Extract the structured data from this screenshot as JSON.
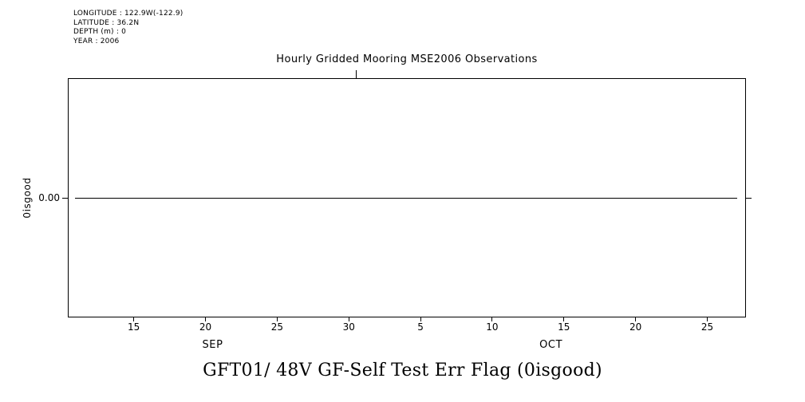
{
  "metadata": {
    "lines": [
      "LONGITUDE : 122.9W(-122.9)",
      "LATITUDE : 36.2N",
      "DEPTH (m) : 0",
      "YEAR : 2006"
    ]
  },
  "title": "Hourly Gridded Mooring MSE2006 Observations",
  "caption": "GFT01/ 48V GF-Self Test Err Flag (0isgood)",
  "chart_data": {
    "type": "line",
    "title": "Hourly Gridded Mooring MSE2006 Observations",
    "subtitle": "GFT01/ 48V GF-Self Test Err Flag (0isgood)",
    "ylabel": "0isgood",
    "grid": false,
    "legend": "none",
    "colors": {
      "line": "#000000",
      "frame": "#000000",
      "background": "#ffffff",
      "text": "#000000"
    },
    "y_axis": {
      "min": -1,
      "max": 1,
      "ticks": [
        {
          "value": 0,
          "label": "0.00"
        }
      ]
    },
    "x_axis": {
      "unit": "days (September day-of-month, continuing through October; 35 = Oct 5)",
      "min": 10.4,
      "max": 57.7,
      "ticks": [
        {
          "value": 15,
          "label": "15"
        },
        {
          "value": 20,
          "label": "20"
        },
        {
          "value": 25,
          "label": "25"
        },
        {
          "value": 30,
          "label": "30"
        },
        {
          "value": 35,
          "label": "5"
        },
        {
          "value": 40,
          "label": "10"
        },
        {
          "value": 45,
          "label": "15"
        },
        {
          "value": 50,
          "label": "20"
        },
        {
          "value": 55,
          "label": "25"
        }
      ],
      "month_labels": [
        {
          "value": 20.5,
          "label": "SEP"
        },
        {
          "value": 44.1,
          "label": "OCT"
        }
      ],
      "top_ticks": [
        {
          "value": 30.5,
          "label": ""
        }
      ]
    },
    "series": [
      {
        "name": "GFT01/ 48V GF-Self Test Err Flag (0isgood)",
        "constant_value": 0.0,
        "points": [
          {
            "x": 10.9,
            "y": 0.0
          },
          {
            "x": 57.1,
            "y": 0.0
          }
        ]
      }
    ]
  }
}
